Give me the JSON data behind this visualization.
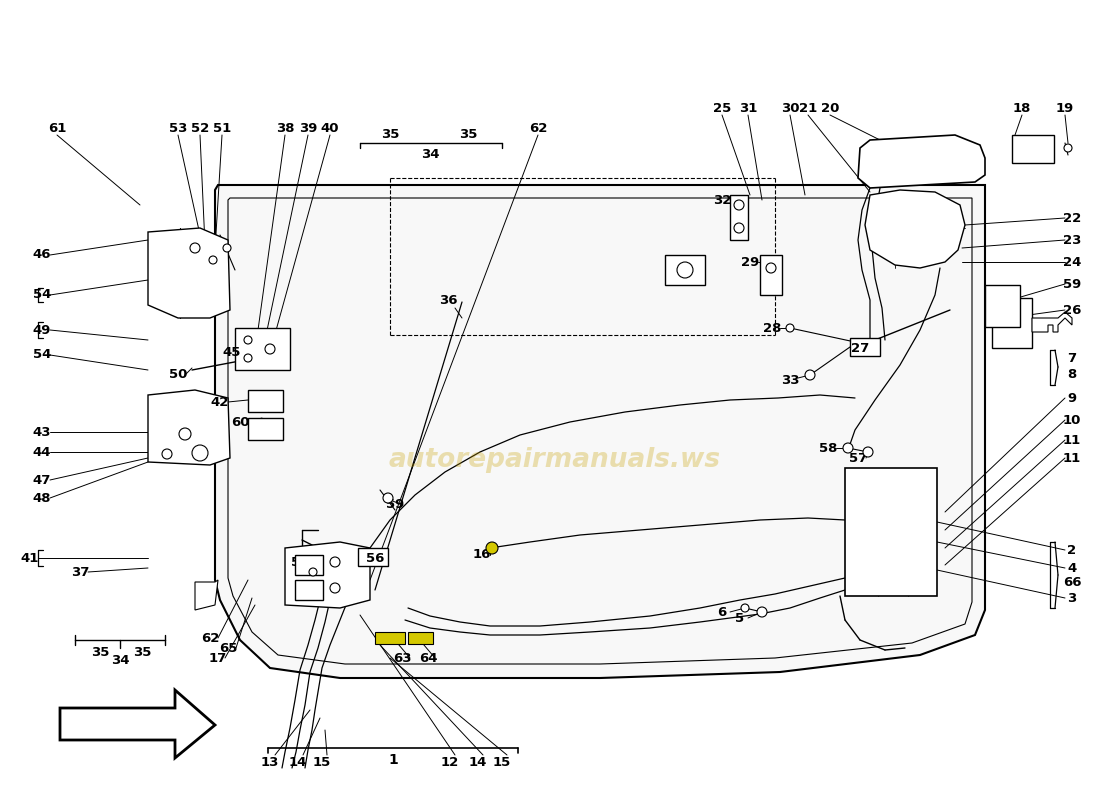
{
  "background_color": "#ffffff",
  "watermark_text": "autorepairmanuals.ws",
  "watermark_color": "#c8a000",
  "watermark_alpha": 0.3,
  "line_color": "#000000",
  "label_fontsize": 9.5,
  "highlight_yellow": "#d4c800"
}
